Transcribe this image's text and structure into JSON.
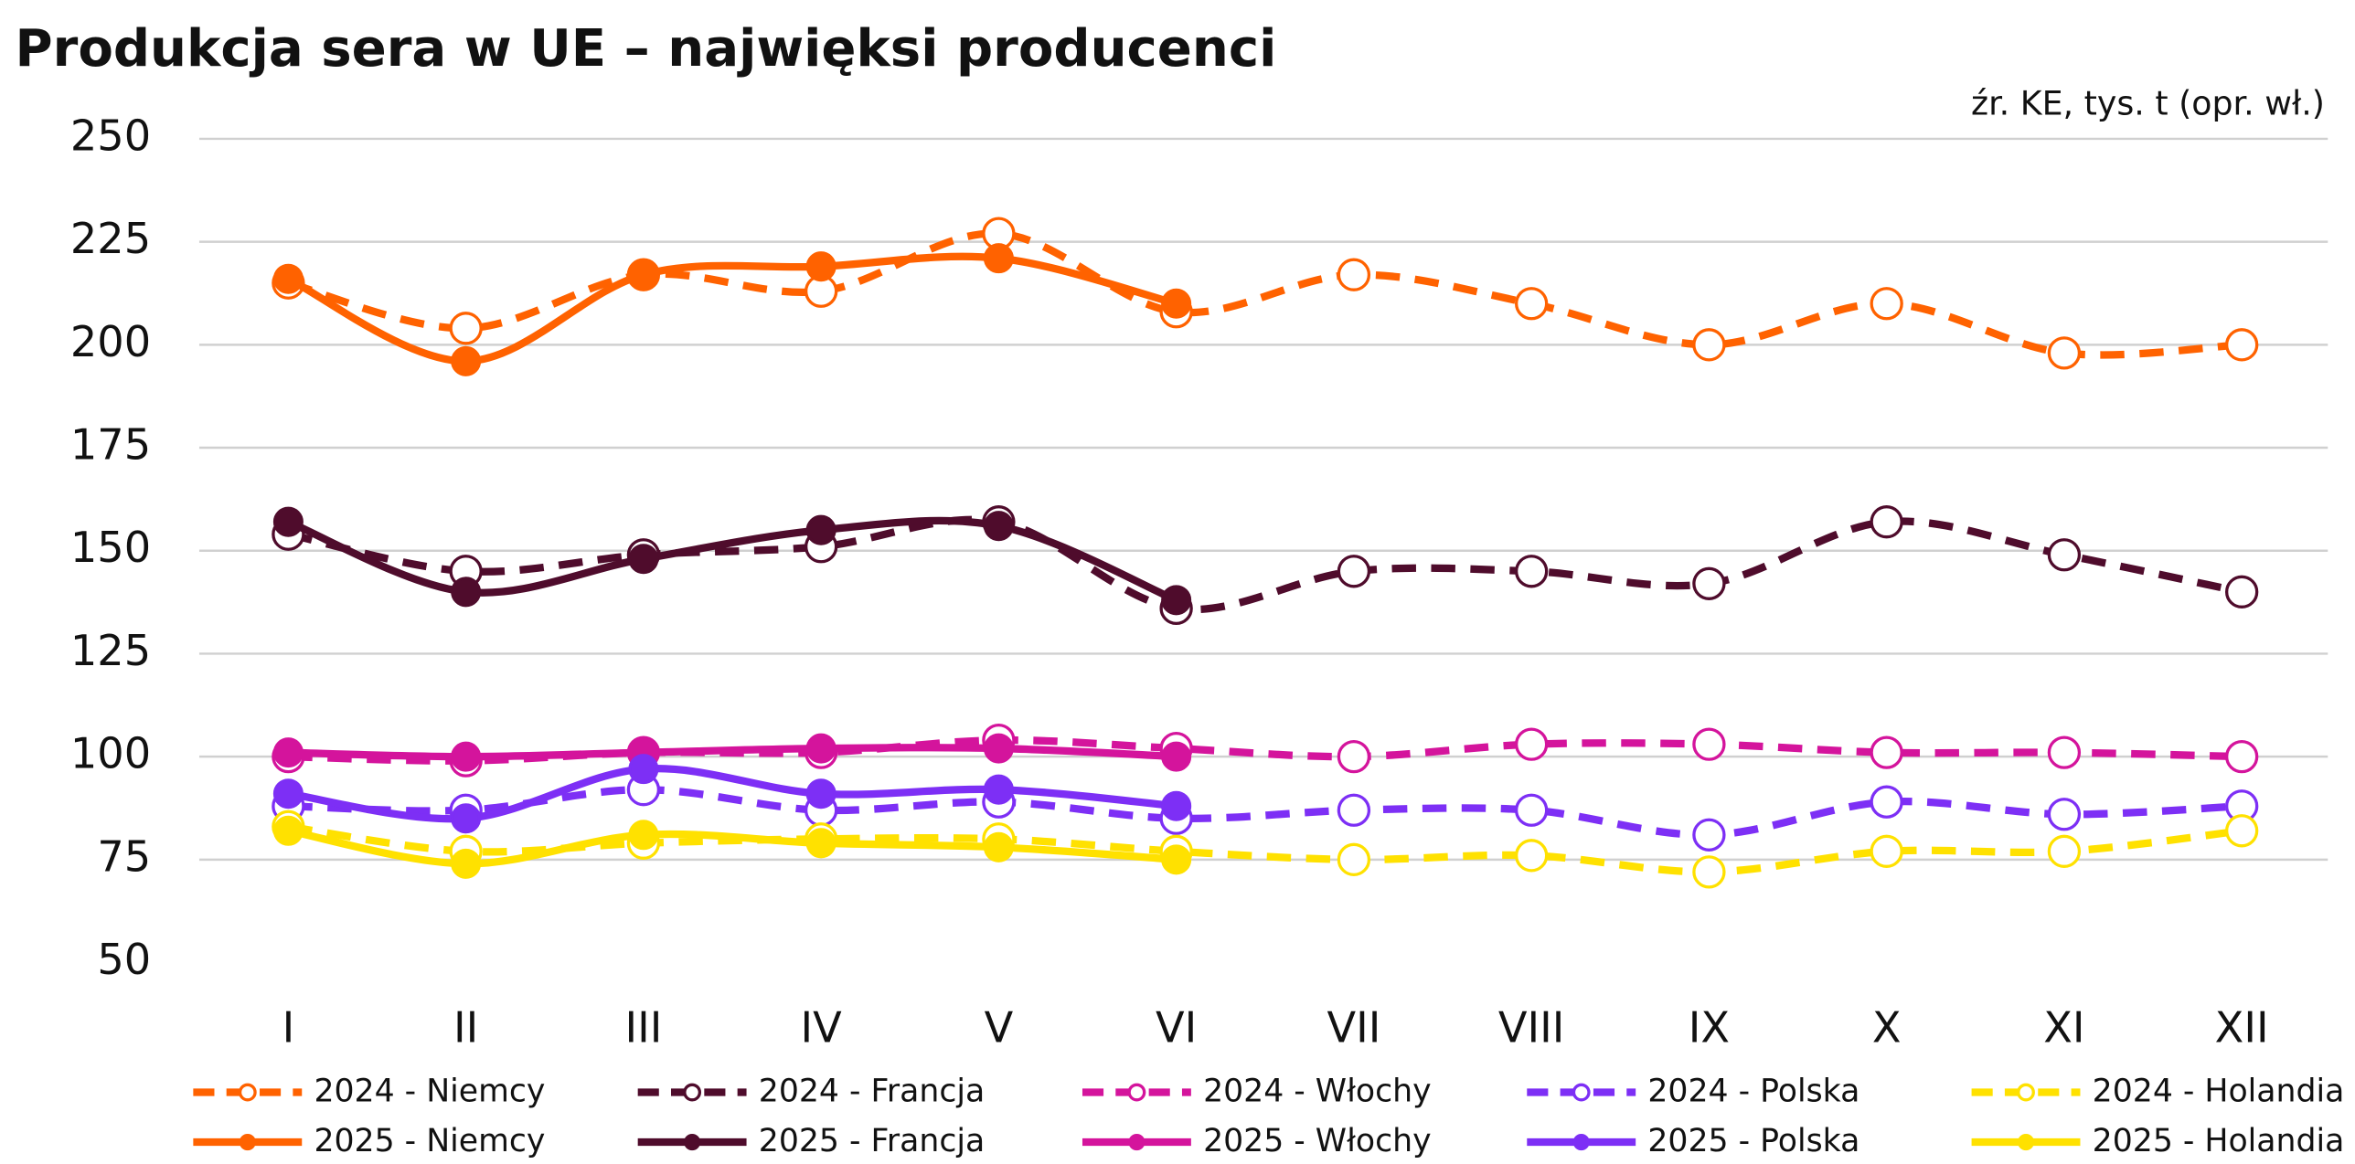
{
  "chart_data": {
    "type": "line",
    "title": "Produkcja sera w UE – najwięksi producenci",
    "subtitle": "źr. KE, tys. t (opr. wł.)",
    "categories": [
      "I",
      "II",
      "III",
      "IV",
      "V",
      "VI",
      "VII",
      "VIII",
      "IX",
      "X",
      "XI",
      "XII"
    ],
    "ylim": [
      50,
      250
    ],
    "yticks": [
      50,
      75,
      100,
      125,
      150,
      175,
      200,
      225,
      250
    ],
    "grid": true,
    "series": [
      {
        "name": "2024 - Niemcy",
        "color": "#ff6200",
        "style": "dashed",
        "values": [
          215,
          204,
          217,
          213,
          227,
          208,
          217,
          210,
          200,
          210,
          198,
          200
        ]
      },
      {
        "name": "2025 - Niemcy",
        "color": "#ff6200",
        "style": "solid",
        "values": [
          216,
          196,
          217,
          219,
          221,
          210,
          null,
          null,
          null,
          null,
          null,
          null
        ]
      },
      {
        "name": "2024 - Francja",
        "color": "#4f0c2c",
        "style": "dashed",
        "values": [
          154,
          145,
          149,
          151,
          157,
          136,
          145,
          145,
          142,
          157,
          149,
          140
        ]
      },
      {
        "name": "2025 - Francja",
        "color": "#4f0c2c",
        "style": "solid",
        "values": [
          157,
          140,
          148,
          155,
          156,
          138,
          null,
          null,
          null,
          null,
          null,
          null
        ]
      },
      {
        "name": "2024 - Włochy",
        "color": "#d4149c",
        "style": "dashed",
        "values": [
          100,
          99,
          101,
          101,
          104,
          102,
          100,
          103,
          103,
          101,
          101,
          100
        ]
      },
      {
        "name": "2025 - Włochy",
        "color": "#d4149c",
        "style": "solid",
        "values": [
          101,
          100,
          101,
          102,
          102,
          100,
          null,
          null,
          null,
          null,
          null,
          null
        ]
      },
      {
        "name": "2024 - Polska",
        "color": "#7d2ff5",
        "style": "dashed",
        "values": [
          88,
          87,
          92,
          87,
          89,
          85,
          87,
          87,
          81,
          89,
          86,
          88
        ]
      },
      {
        "name": "2025 - Polska",
        "color": "#7d2ff5",
        "style": "solid",
        "values": [
          91,
          85,
          97,
          91,
          92,
          88,
          null,
          null,
          null,
          null,
          null,
          null
        ]
      },
      {
        "name": "2024 - Holandia",
        "color": "#ffe100",
        "style": "dashed",
        "values": [
          83,
          77,
          79,
          80,
          80,
          77,
          75,
          76,
          72,
          77,
          77,
          82
        ]
      },
      {
        "name": "2025 - Holandia",
        "color": "#ffe100",
        "style": "solid",
        "values": [
          82,
          74,
          81,
          79,
          78,
          75,
          null,
          null,
          null,
          null,
          null,
          null
        ]
      }
    ]
  }
}
